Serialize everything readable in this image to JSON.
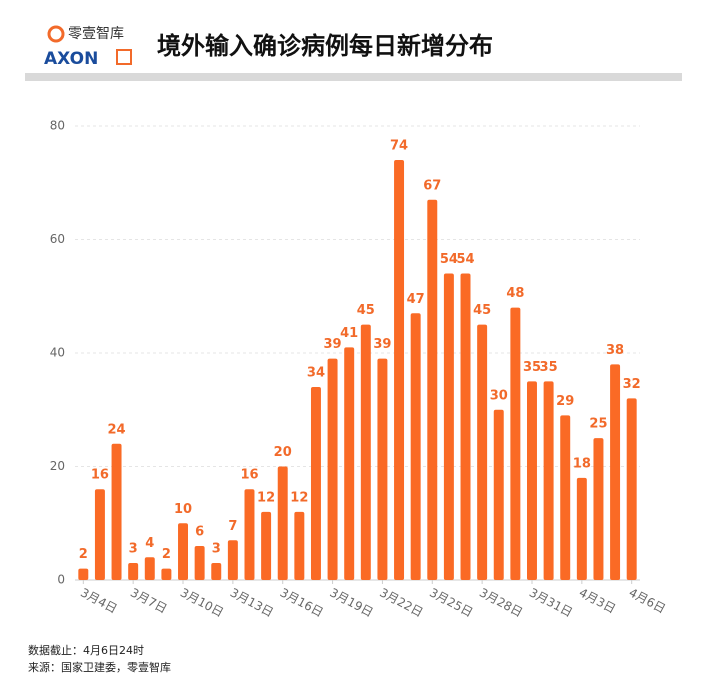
{
  "header": {
    "brand_cn": "零壹智库",
    "brand_en": "AXON"
  },
  "chart_data": {
    "type": "bar",
    "title": "境外输入确诊病例每日新增分布",
    "categories": [
      "3月4日",
      null,
      null,
      "3月7日",
      null,
      null,
      "3月10日",
      null,
      null,
      "3月13日",
      null,
      null,
      "3月16日",
      null,
      null,
      "3月19日",
      null,
      null,
      "3月22日",
      null,
      null,
      "3月25日",
      null,
      null,
      "3月28日",
      null,
      null,
      "3月31日",
      null,
      null,
      "4月3日",
      null,
      null,
      "4月6日"
    ],
    "values": [
      2,
      16,
      24,
      3,
      4,
      2,
      10,
      6,
      3,
      7,
      16,
      12,
      20,
      12,
      34,
      39,
      41,
      45,
      39,
      74,
      47,
      67,
      54,
      54,
      45,
      30,
      48,
      35,
      35,
      29,
      18,
      25,
      38,
      32
    ],
    "color": "#fa6a25",
    "ylim": [
      0,
      80
    ],
    "yticks": [
      0,
      20,
      40,
      60,
      80
    ],
    "grid": true
  },
  "footer": {
    "note": "数据截止：4月6日24时",
    "source": "来源：国家卫建委，零壹智库"
  }
}
